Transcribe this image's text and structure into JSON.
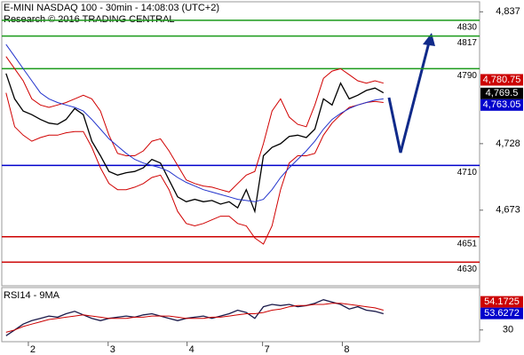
{
  "chart_data": [
    {
      "type": "line",
      "title": "E-MINI NASDAQ 100 - 30min - 14:08:03 (UTC+2)",
      "subtitle": "Research © 2016 TRADING CENTRAL",
      "x": [
        0,
        1,
        2,
        3,
        4,
        5,
        6,
        7,
        8,
        9,
        10,
        11,
        12,
        13,
        14,
        15,
        16,
        17,
        18,
        19,
        20,
        21,
        22,
        23,
        24,
        25,
        26,
        27,
        28,
        29,
        30,
        31,
        32,
        33,
        34,
        35,
        36,
        37,
        38,
        39,
        40,
        41,
        42,
        43,
        44
      ],
      "xlim": [
        -0.5,
        55.2
      ],
      "xticks": [
        {
          "value": 2.6,
          "label": "2"
        },
        {
          "value": 11.9,
          "label": "3"
        },
        {
          "value": 21.1,
          "label": "4"
        },
        {
          "value": 29.9,
          "label": "7"
        },
        {
          "value": 39.2,
          "label": "8"
        }
      ],
      "ylim": [
        4610.5,
        4845.3
      ],
      "yticks": [
        {
          "value": 4837,
          "label": "4,837"
        },
        {
          "value": 4728,
          "label": "4,728"
        },
        {
          "value": 4673,
          "label": "4,673"
        }
      ],
      "series": [
        {
          "color": "#000000",
          "values": [
            4786,
            4765,
            4755,
            4752,
            4748,
            4745,
            4744,
            4748,
            4757,
            4752,
            4730,
            4718,
            4705,
            4702,
            4704,
            4705,
            4708,
            4715,
            4712,
            4698,
            4684,
            4680,
            4682,
            4680,
            4681,
            4678,
            4680,
            4675,
            4690,
            4672,
            4718,
            4725,
            4728,
            4734,
            4735,
            4733,
            4740,
            4765,
            4760,
            4778,
            4765,
            4768,
            4772,
            4774,
            4770
          ]
        },
        {
          "color": "#d00000",
          "values": [
            4800,
            4790,
            4780,
            4765,
            4760,
            4758,
            4760,
            4762,
            4765,
            4768,
            4765,
            4755,
            4735,
            4720,
            4718,
            4718,
            4722,
            4730,
            4732,
            4722,
            4710,
            4698,
            4695,
            4693,
            4692,
            4690,
            4688,
            4695,
            4702,
            4705,
            4728,
            4755,
            4765,
            4750,
            4744,
            4742,
            4760,
            4782,
            4788,
            4790,
            4785,
            4780,
            4778,
            4780,
            4778
          ]
        },
        {
          "color": "#d00000",
          "values": [
            4770,
            4742,
            4735,
            4730,
            4733,
            4735,
            4735,
            4737,
            4738,
            4738,
            4725,
            4708,
            4695,
            4690,
            4690,
            4692,
            4695,
            4700,
            4702,
            4690,
            4672,
            4662,
            4660,
            4662,
            4665,
            4668,
            4668,
            4662,
            4660,
            4650,
            4645,
            4660,
            4690,
            4712,
            4718,
            4718,
            4720,
            4735,
            4745,
            4752,
            4758,
            4760,
            4762,
            4763,
            4762
          ]
        },
        {
          "color": "#2233cc",
          "values": [
            4810,
            4800,
            4790,
            4780,
            4770,
            4765,
            4762,
            4760,
            4758,
            4755,
            4748,
            4740,
            4732,
            4726,
            4720,
            4715,
            4712,
            4710,
            4708,
            4705,
            4700,
            4696,
            4693,
            4690,
            4688,
            4686,
            4684,
            4682,
            4681,
            4680,
            4682,
            4690,
            4700,
            4708,
            4715,
            4722,
            4730,
            4740,
            4748,
            4753,
            4757,
            4760,
            4762,
            4764,
            4765
          ]
        }
      ],
      "levels": [
        {
          "value": 4830,
          "color": "#1a9a1a"
        },
        {
          "value": 4817,
          "color": "#1a9a1a"
        },
        {
          "value": 4790,
          "color": "#1a9a1a"
        },
        {
          "value": 4710,
          "color": "#0000cc"
        },
        {
          "value": 4651,
          "color": "#cc0000"
        },
        {
          "value": 4630,
          "color": "#cc0000"
        }
      ],
      "price_tags": [
        {
          "value": 4780.75,
          "label": "4,780.75",
          "color": "#cc0000"
        },
        {
          "value": 4769.5,
          "label": "4,769.5",
          "color": "#000000"
        },
        {
          "value": 4763.05,
          "label": "4,763.05",
          "color": "#0000cc"
        }
      ]
    },
    {
      "type": "line",
      "title": "RSI14 - 9MA",
      "x": [
        0,
        1,
        2,
        3,
        4,
        5,
        6,
        7,
        8,
        9,
        10,
        11,
        12,
        13,
        14,
        15,
        16,
        17,
        18,
        19,
        20,
        21,
        22,
        23,
        24,
        25,
        26,
        27,
        28,
        29,
        30,
        31,
        32,
        33,
        34,
        35,
        36,
        37,
        38,
        39,
        40,
        41,
        42,
        43,
        44
      ],
      "xlim": [
        -0.5,
        55.2
      ],
      "ylim": [
        19.9,
        66.5
      ],
      "yticks": [
        30
      ],
      "series": [
        {
          "color": "#1a1a4a",
          "values": [
            25,
            30,
            35,
            38,
            40,
            42,
            41,
            44,
            46,
            43,
            40,
            38,
            40,
            41,
            42,
            41,
            43,
            44,
            42,
            40,
            38,
            40,
            41,
            42,
            40,
            42,
            44,
            47,
            45,
            40,
            50,
            52,
            51,
            52,
            50,
            51,
            53,
            56,
            54,
            52,
            48,
            50,
            47,
            46,
            44
          ]
        },
        {
          "color": "#cc0000",
          "values": [
            28,
            30,
            33,
            35,
            37,
            39,
            40,
            41,
            42,
            43,
            42,
            41,
            40,
            40,
            40,
            41,
            41,
            42,
            42,
            42,
            41,
            40,
            40,
            40,
            41,
            41,
            42,
            43,
            44,
            44,
            45,
            47,
            48,
            50,
            51,
            51,
            52,
            52,
            53,
            53,
            52,
            51,
            50,
            49,
            47
          ]
        }
      ],
      "price_tags": [
        {
          "value": 54.1725,
          "label": "54.1725",
          "color": "#cc0000"
        },
        {
          "value": 53.6272,
          "label": "53.6272",
          "color": "#0000cc"
        }
      ]
    }
  ]
}
